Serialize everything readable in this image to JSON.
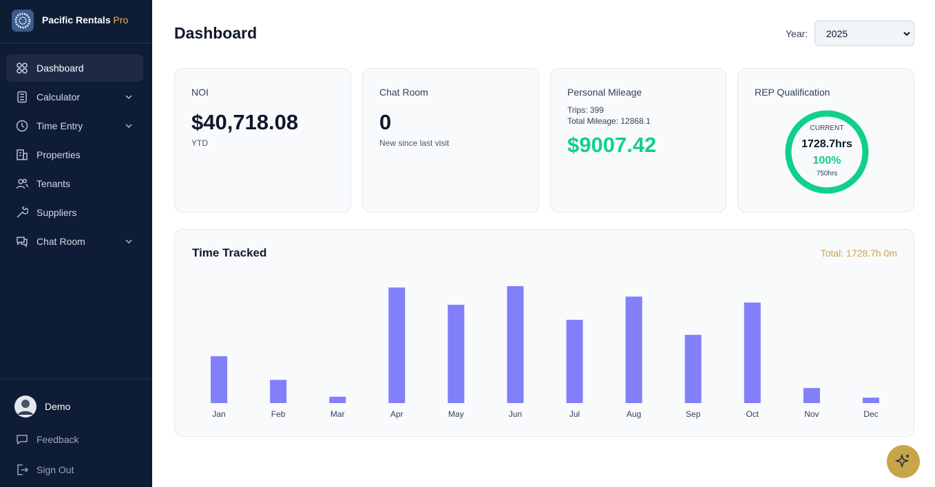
{
  "sidebar": {
    "brand": "Pacific Rentals",
    "brand_suffix": "Pro",
    "nav": [
      "Dashboard",
      "Calculator",
      "Time Entry",
      "Properties",
      "Tenants",
      "Suppliers",
      "Chat Room"
    ],
    "user": "Demo",
    "footer_links": [
      "Feedback",
      "Sign Out"
    ]
  },
  "header": {
    "title": "Dashboard",
    "year_label": "Year:",
    "year": "2025"
  },
  "cards": {
    "noi": {
      "title": "NOI",
      "value": "$40,718.08",
      "note": "YTD"
    },
    "chat": {
      "title": "Chat Room",
      "value": "0",
      "note": "New since last visit"
    },
    "mileage": {
      "title": "Personal Mileage",
      "trips": "Trips: 399",
      "total": "Total Mileage: 12868.1",
      "value": "$9007.42"
    },
    "rep": {
      "title": "REP Qualification",
      "current_label": "CURRENT",
      "current": "1728.7hrs",
      "percent": "100%",
      "target": "750hrs"
    }
  },
  "chart_data": {
    "type": "bar",
    "title": "Time Tracked",
    "total_label": "Total: 1728.7h 0m",
    "categories": [
      "Jan",
      "Feb",
      "Mar",
      "Apr",
      "May",
      "Jun",
      "Jul",
      "Aug",
      "Sep",
      "Oct",
      "Nov",
      "Dec"
    ],
    "values": [
      103,
      51,
      14,
      254,
      216,
      257,
      183,
      234,
      150,
      221,
      33,
      12
    ],
    "color": "#8180f8"
  }
}
